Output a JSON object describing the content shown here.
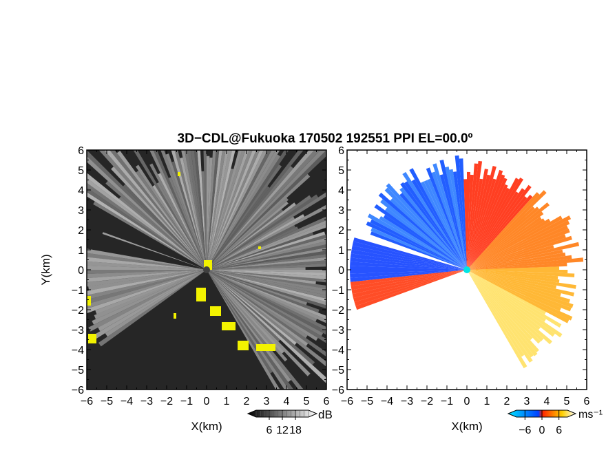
{
  "title": "3D−CDL@Fukuoka 170502 192551 PPI EL=00.0º",
  "chart_data": [
    {
      "type": "heatmap",
      "name": "reflectivity-panel",
      "xlabel": "X(km)",
      "ylabel": "Y(km)",
      "xlim": [
        -6,
        6
      ],
      "ylim": [
        -6,
        6
      ],
      "x_ticks": [
        "−6",
        "−5",
        "−4",
        "−3",
        "−2",
        "−1",
        "0",
        "1",
        "2",
        "3",
        "4",
        "5",
        "6"
      ],
      "y_ticks": [
        "6",
        "5",
        "4",
        "3",
        "2",
        "1",
        "0",
        "−1",
        "−2",
        "−3",
        "−4",
        "−5",
        "−6"
      ],
      "colorbar": {
        "label": "dB",
        "ticks": [
          "6",
          "12",
          "18"
        ],
        "range": [
          0,
          24
        ],
        "colors": [
          "#000000",
          "#ffffff"
        ]
      },
      "highlight_color": "#f2f200",
      "background_color": "#262626"
    },
    {
      "type": "heatmap",
      "name": "velocity-panel",
      "xlabel": "X(km)",
      "ylabel": "",
      "xlim": [
        -6,
        6
      ],
      "ylim": [
        -6,
        6
      ],
      "x_ticks": [
        "−6",
        "−5",
        "−4",
        "−3",
        "−2",
        "−1",
        "0",
        "1",
        "2",
        "3",
        "4",
        "5",
        "6"
      ],
      "y_ticks": [
        "6",
        "5",
        "4",
        "3",
        "2",
        "1",
        "0",
        "−1",
        "−2",
        "−3",
        "−4",
        "−5",
        "−6"
      ],
      "colorbar": {
        "label": "ms⁻¹",
        "ticks": [
          "−6",
          "0",
          "6"
        ],
        "range": [
          -9,
          9
        ],
        "colors": [
          "#00e5ff",
          "#0040ff",
          "#ff2000",
          "#ffff00",
          "#ffffff"
        ]
      },
      "radar_marker_color": "#00e5e5"
    }
  ]
}
